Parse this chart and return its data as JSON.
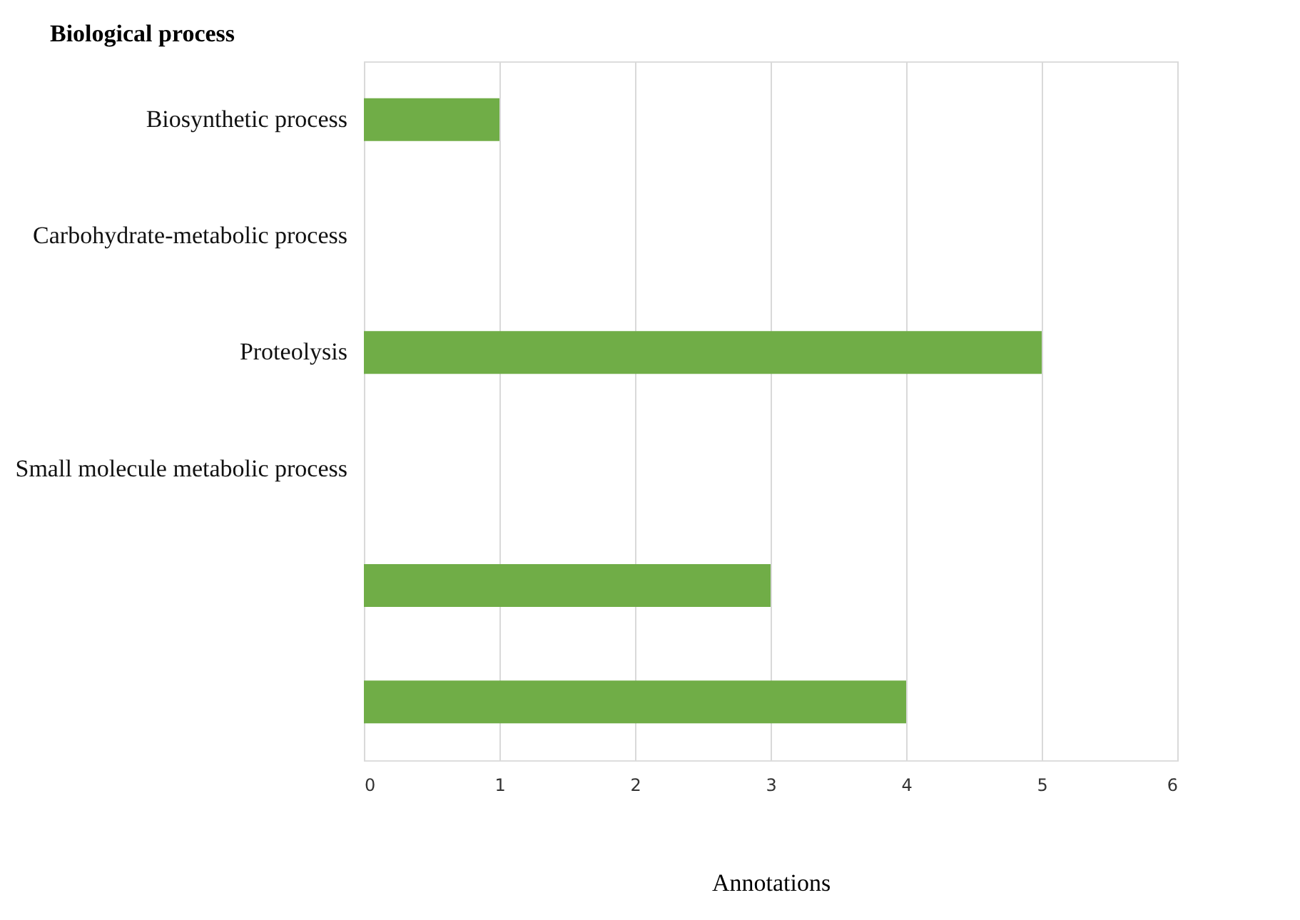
{
  "chart_data": {
    "type": "bar",
    "orientation": "horizontal",
    "title": "Biological process",
    "xlabel": "Annotations",
    "categories": [
      "Biosynthetic process",
      "Carbohydrate-metabolic process",
      "Proteolysis",
      "Small molecule metabolic process",
      null,
      null
    ],
    "values": [
      1,
      null,
      5,
      null,
      3,
      4
    ],
    "color": "#70ad47",
    "xlim": [
      0,
      6
    ],
    "xticks": [
      0,
      1,
      2,
      3,
      4,
      5,
      6
    ],
    "grid": "x"
  }
}
